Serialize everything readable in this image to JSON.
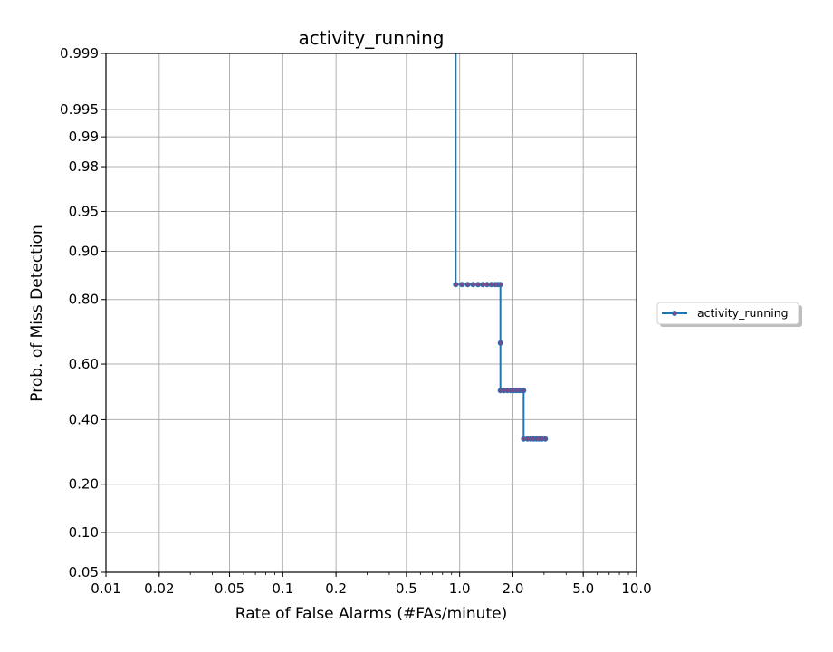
{
  "chart_data": {
    "type": "line",
    "title": "activity_running",
    "xlabel": "Rate of False Alarms (#FAs/minute)",
    "ylabel": "Prob. of Miss Detection",
    "x_scale": "log",
    "y_scale": "probit",
    "xlim": [
      0.01,
      10.0
    ],
    "ylim": [
      0.05,
      0.999
    ],
    "grid": true,
    "legend_position": "right",
    "x_ticks": [
      0.01,
      0.02,
      0.05,
      0.1,
      0.2,
      0.5,
      1.0,
      2.0,
      5.0,
      10.0
    ],
    "x_tick_labels": [
      "0.01",
      "0.02",
      "0.05",
      "0.1",
      "0.2",
      "0.5",
      "1.0",
      "2.0",
      "5.0",
      "10.0"
    ],
    "y_ticks": [
      0.05,
      0.1,
      0.2,
      0.4,
      0.6,
      0.8,
      0.9,
      0.95,
      0.98,
      0.99,
      0.995,
      0.999
    ],
    "y_tick_labels": [
      "0.05",
      "0.10",
      "0.20",
      "0.40",
      "0.60",
      "0.80",
      "0.90",
      "0.95",
      "0.98",
      "0.99",
      "0.995",
      "0.999"
    ],
    "series": [
      {
        "name": "activity_running",
        "color": "#1f77b4",
        "marker_color": "#7a4a8a",
        "line": [
          [
            0.95,
            0.999
          ],
          [
            0.95,
            0.836
          ],
          [
            1.7,
            0.836
          ],
          [
            1.7,
            0.505
          ],
          [
            2.3,
            0.505
          ],
          [
            2.3,
            0.334
          ],
          [
            3.05,
            0.334
          ]
        ],
        "markers": [
          [
            0.95,
            0.836
          ],
          [
            1.03,
            0.836
          ],
          [
            1.11,
            0.836
          ],
          [
            1.19,
            0.836
          ],
          [
            1.27,
            0.836
          ],
          [
            1.35,
            0.836
          ],
          [
            1.43,
            0.836
          ],
          [
            1.51,
            0.836
          ],
          [
            1.59,
            0.836
          ],
          [
            1.65,
            0.836
          ],
          [
            1.7,
            0.836
          ],
          [
            1.7,
            0.672
          ],
          [
            1.7,
            0.505
          ],
          [
            1.78,
            0.505
          ],
          [
            1.86,
            0.505
          ],
          [
            1.94,
            0.505
          ],
          [
            2.02,
            0.505
          ],
          [
            2.1,
            0.505
          ],
          [
            2.18,
            0.505
          ],
          [
            2.26,
            0.505
          ],
          [
            2.3,
            0.505
          ],
          [
            2.3,
            0.334
          ],
          [
            2.42,
            0.334
          ],
          [
            2.52,
            0.334
          ],
          [
            2.62,
            0.334
          ],
          [
            2.72,
            0.334
          ],
          [
            2.82,
            0.334
          ],
          [
            2.92,
            0.334
          ],
          [
            3.05,
            0.334
          ]
        ]
      }
    ]
  }
}
